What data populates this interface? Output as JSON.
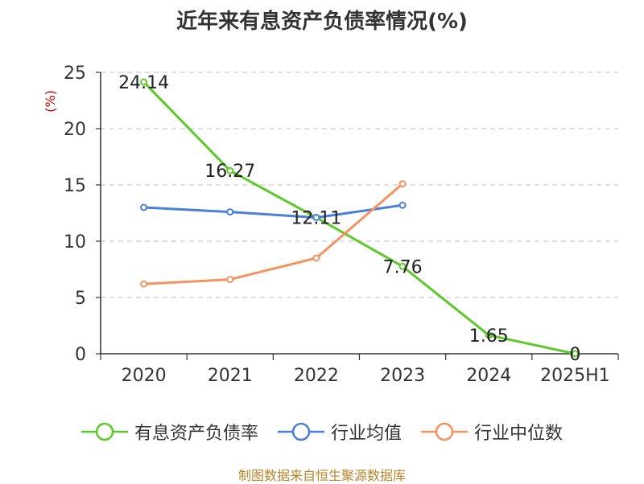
{
  "chart_data": {
    "type": "line",
    "title": "近年来有息资产负债率情况(%)",
    "ylabel": "(%)",
    "xlabel": "",
    "categories": [
      "2020",
      "2021",
      "2022",
      "2023",
      "2024",
      "2025H1"
    ],
    "ylim": [
      0,
      25
    ],
    "yticks": [
      0,
      5,
      10,
      15,
      20,
      25
    ],
    "grid": "horizontal dashed",
    "legend_position": "bottom",
    "series": [
      {
        "name": "有息资产负债率",
        "color": "#5cc92a",
        "values": [
          24.14,
          16.27,
          12.11,
          7.76,
          1.65,
          0
        ],
        "labels": [
          "24.14",
          "16.27",
          "12.11",
          "7.76",
          "1.65",
          "0"
        ]
      },
      {
        "name": "行业均值",
        "color": "#4a7fd9",
        "values": [
          13.0,
          12.6,
          12.1,
          13.2,
          null,
          null
        ]
      },
      {
        "name": "行业中位数",
        "color": "#f4935f",
        "values": [
          6.2,
          6.6,
          8.5,
          15.1,
          null,
          null
        ]
      }
    ]
  },
  "source": "制图数据来自恒生聚源数据库"
}
